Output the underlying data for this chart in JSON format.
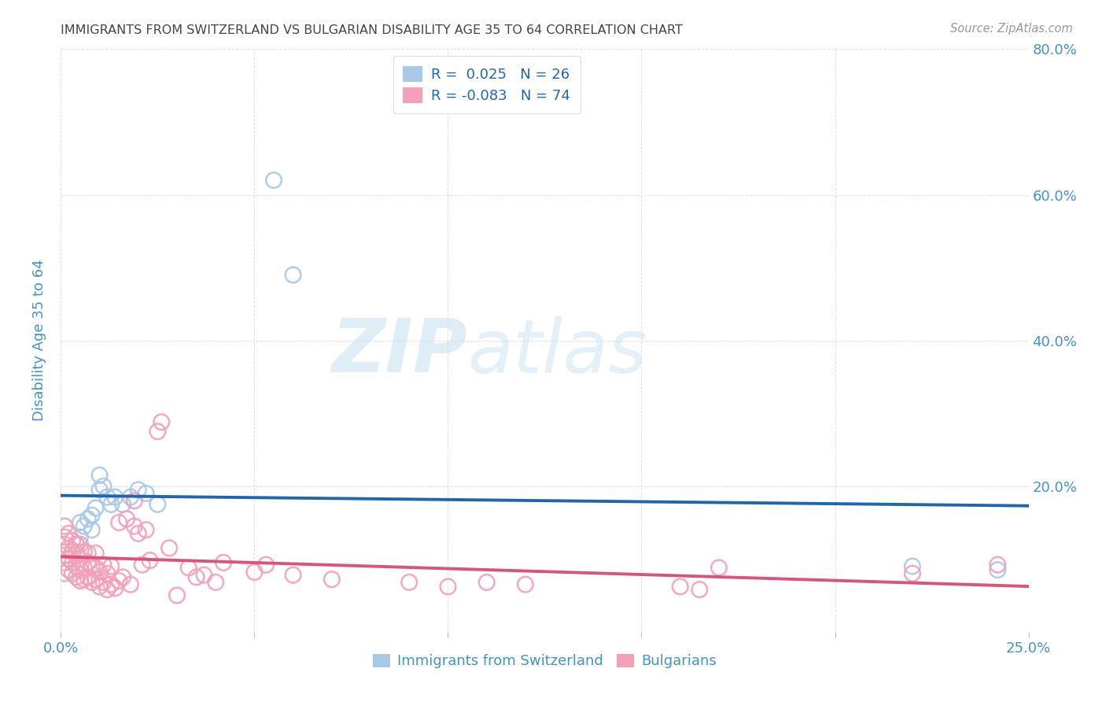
{
  "title": "IMMIGRANTS FROM SWITZERLAND VS BULGARIAN DISABILITY AGE 35 TO 64 CORRELATION CHART",
  "source": "Source: ZipAtlas.com",
  "ylabel": "Disability Age 35 to 64",
  "legend_labels": [
    "Immigrants from Switzerland",
    "Bulgarians"
  ],
  "legend_r_n": [
    {
      "R": " 0.025",
      "N": "26"
    },
    {
      "R": "-0.083",
      "N": "74"
    }
  ],
  "blue_scatter_color": "#a8c8e8",
  "pink_scatter_color": "#f4a0b8",
  "blue_line_color": "#2166ac",
  "pink_line_color": "#d9537a",
  "title_color": "#444444",
  "axis_color": "#4393c3",
  "legend_text_color": "#2166ac",
  "background_color": "#ffffff",
  "grid_color": "#cccccc",
  "xlim": [
    0.0,
    0.25
  ],
  "ylim": [
    0.0,
    0.8
  ],
  "x_ticks": [
    0.0,
    0.05,
    0.1,
    0.15,
    0.2,
    0.25
  ],
  "y_ticks": [
    0.0,
    0.2,
    0.4,
    0.6,
    0.8
  ],
  "swiss_x": [
    0.001,
    0.002,
    0.003,
    0.004,
    0.005,
    0.005,
    0.006,
    0.007,
    0.008,
    0.008,
    0.009,
    0.01,
    0.01,
    0.011,
    0.012,
    0.013,
    0.014,
    0.016,
    0.018,
    0.02,
    0.022,
    0.025,
    0.055,
    0.06,
    0.22,
    0.242
  ],
  "swiss_y": [
    0.08,
    0.1,
    0.11,
    0.12,
    0.13,
    0.15,
    0.145,
    0.155,
    0.14,
    0.16,
    0.17,
    0.195,
    0.215,
    0.2,
    0.185,
    0.175,
    0.185,
    0.175,
    0.185,
    0.195,
    0.19,
    0.175,
    0.62,
    0.49,
    0.09,
    0.085
  ],
  "bulg_x": [
    0.001,
    0.001,
    0.001,
    0.001,
    0.001,
    0.002,
    0.002,
    0.002,
    0.002,
    0.003,
    0.003,
    0.003,
    0.003,
    0.004,
    0.004,
    0.004,
    0.004,
    0.005,
    0.005,
    0.005,
    0.005,
    0.006,
    0.006,
    0.006,
    0.007,
    0.007,
    0.007,
    0.008,
    0.008,
    0.009,
    0.009,
    0.009,
    0.01,
    0.01,
    0.011,
    0.011,
    0.012,
    0.012,
    0.013,
    0.013,
    0.014,
    0.015,
    0.015,
    0.016,
    0.017,
    0.018,
    0.019,
    0.019,
    0.02,
    0.021,
    0.022,
    0.023,
    0.025,
    0.026,
    0.028,
    0.03,
    0.033,
    0.035,
    0.037,
    0.04,
    0.042,
    0.05,
    0.053,
    0.06,
    0.07,
    0.09,
    0.1,
    0.11,
    0.12,
    0.16,
    0.165,
    0.17,
    0.22,
    0.242
  ],
  "bulg_y": [
    0.095,
    0.105,
    0.12,
    0.13,
    0.145,
    0.085,
    0.1,
    0.115,
    0.135,
    0.08,
    0.095,
    0.11,
    0.125,
    0.075,
    0.09,
    0.108,
    0.12,
    0.07,
    0.085,
    0.1,
    0.12,
    0.072,
    0.088,
    0.11,
    0.075,
    0.095,
    0.108,
    0.068,
    0.09,
    0.072,
    0.088,
    0.108,
    0.062,
    0.082,
    0.068,
    0.092,
    0.058,
    0.08,
    0.065,
    0.09,
    0.06,
    0.07,
    0.15,
    0.075,
    0.155,
    0.065,
    0.145,
    0.18,
    0.135,
    0.092,
    0.14,
    0.098,
    0.275,
    0.288,
    0.115,
    0.05,
    0.088,
    0.075,
    0.078,
    0.068,
    0.095,
    0.082,
    0.092,
    0.078,
    0.072,
    0.068,
    0.062,
    0.068,
    0.065,
    0.062,
    0.058,
    0.088,
    0.08,
    0.092
  ]
}
